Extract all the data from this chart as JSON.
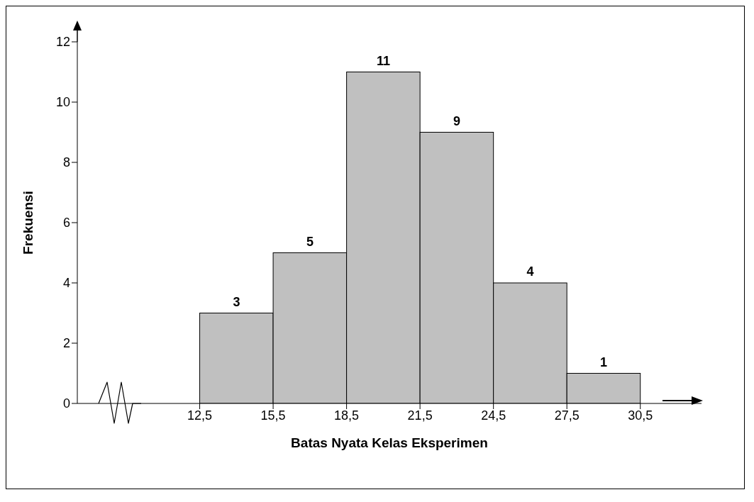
{
  "chart_data": {
    "type": "histogram",
    "xlabel": "Batas Nyata Kelas Eksperimen",
    "ylabel": "Frekuensi",
    "bins": [
      12.5,
      15.5,
      18.5,
      21.5,
      24.5,
      27.5,
      30.5
    ],
    "values": [
      3,
      5,
      11,
      9,
      4,
      1
    ],
    "color": "#c0c0c0",
    "data_labels": true,
    "xlim": [
      7.5,
      33
    ],
    "xticks": [
      {
        "value": 12.5,
        "label": "12,5"
      },
      {
        "value": 15.5,
        "label": "15,5"
      },
      {
        "value": 18.5,
        "label": "18,5"
      },
      {
        "value": 21.5,
        "label": "21,5"
      },
      {
        "value": 24.5,
        "label": "24,5"
      },
      {
        "value": 27.5,
        "label": "27,5"
      },
      {
        "value": 30.5,
        "label": "30,5"
      }
    ],
    "ylim": [
      0,
      12
    ],
    "yticks": [
      0,
      2,
      4,
      6,
      8,
      10,
      12
    ],
    "grid": false,
    "legend": false
  }
}
